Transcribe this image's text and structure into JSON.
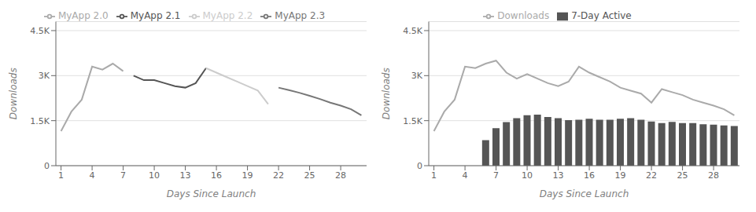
{
  "chart_data": [
    {
      "type": "line",
      "xlabel": "Days Since Launch",
      "ylabel": "Downloads",
      "x": [
        1,
        2,
        3,
        4,
        5,
        6,
        7,
        8,
        9,
        10,
        11,
        12,
        13,
        14,
        15,
        16,
        17,
        18,
        19,
        20,
        21,
        22,
        23,
        24,
        25,
        26,
        27,
        28,
        29,
        30
      ],
      "xlim": [
        0.5,
        30.5
      ],
      "xticks": [
        1,
        4,
        7,
        10,
        13,
        16,
        19,
        22,
        25,
        28
      ],
      "ylim": [
        0,
        4800
      ],
      "yticks": [
        0,
        {
          "value": 1500,
          "label": "1.5K"
        },
        {
          "value": 3000,
          "label": "3K"
        },
        {
          "value": 4500,
          "label": "4.5K"
        }
      ],
      "grid": "y",
      "legend": "top",
      "series": [
        {
          "name": "MyApp 2.0",
          "color": "#aaaaaa",
          "values": [
            1150,
            1800,
            2200,
            3300,
            3200,
            3400,
            3150,
            null,
            null,
            null,
            null,
            null,
            null,
            null,
            null,
            null,
            null,
            null,
            null,
            null,
            null,
            null,
            null,
            null,
            null,
            null,
            null,
            null,
            null,
            null
          ]
        },
        {
          "name": "MyApp 2.1",
          "color": "#555555",
          "values": [
            null,
            null,
            null,
            null,
            null,
            null,
            null,
            3000,
            2850,
            2850,
            2750,
            2650,
            2600,
            2750,
            3250,
            null,
            null,
            null,
            null,
            null,
            null,
            null,
            null,
            null,
            null,
            null,
            null,
            null,
            null,
            null
          ]
        },
        {
          "name": "MyApp 2.2",
          "color": "#cccccc",
          "values": [
            null,
            null,
            null,
            null,
            null,
            null,
            null,
            null,
            null,
            null,
            null,
            null,
            null,
            null,
            3250,
            3100,
            2950,
            2800,
            2650,
            2500,
            2050,
            null,
            null,
            null,
            null,
            null,
            null,
            null,
            null,
            null
          ]
        },
        {
          "name": "MyApp 2.3",
          "color": "#777777",
          "values": [
            null,
            null,
            null,
            null,
            null,
            null,
            null,
            null,
            null,
            null,
            null,
            null,
            null,
            null,
            null,
            null,
            null,
            null,
            null,
            null,
            null,
            2600,
            2520,
            2430,
            2330,
            2220,
            2100,
            2000,
            1880,
            1680
          ]
        }
      ]
    },
    {
      "type": "bar",
      "xlabel": "Days Since Launch",
      "ylabel": "Downloads",
      "x": [
        1,
        2,
        3,
        4,
        5,
        6,
        7,
        8,
        9,
        10,
        11,
        12,
        13,
        14,
        15,
        16,
        17,
        18,
        19,
        20,
        21,
        22,
        23,
        24,
        25,
        26,
        27,
        28,
        29,
        30
      ],
      "xlim": [
        0.5,
        30.5
      ],
      "xticks": [
        1,
        4,
        7,
        10,
        13,
        16,
        19,
        22,
        25,
        28
      ],
      "ylim": [
        0,
        4800
      ],
      "yticks": [
        0,
        {
          "value": 1500,
          "label": "1.5K"
        },
        {
          "value": 3000,
          "label": "3K"
        },
        {
          "value": 4500,
          "label": "4.5K"
        }
      ],
      "grid": "y",
      "legend": "top",
      "series": [
        {
          "name": "Downloads",
          "type": "line",
          "color": "#aaaaaa",
          "values": [
            1150,
            1800,
            2200,
            3300,
            3250,
            3400,
            3500,
            3100,
            2900,
            3050,
            2900,
            2750,
            2650,
            2800,
            3300,
            3100,
            2950,
            2800,
            2600,
            2500,
            2400,
            2100,
            2550,
            2450,
            2350,
            2200,
            2100,
            2000,
            1880,
            1680
          ]
        },
        {
          "name": "7-Day Active",
          "type": "bar",
          "color": "#555555",
          "values": [
            null,
            null,
            null,
            null,
            null,
            850,
            1250,
            1450,
            1580,
            1680,
            1700,
            1620,
            1580,
            1520,
            1530,
            1560,
            1530,
            1530,
            1560,
            1580,
            1530,
            1470,
            1420,
            1460,
            1420,
            1420,
            1380,
            1370,
            1340,
            1320
          ]
        }
      ]
    }
  ]
}
